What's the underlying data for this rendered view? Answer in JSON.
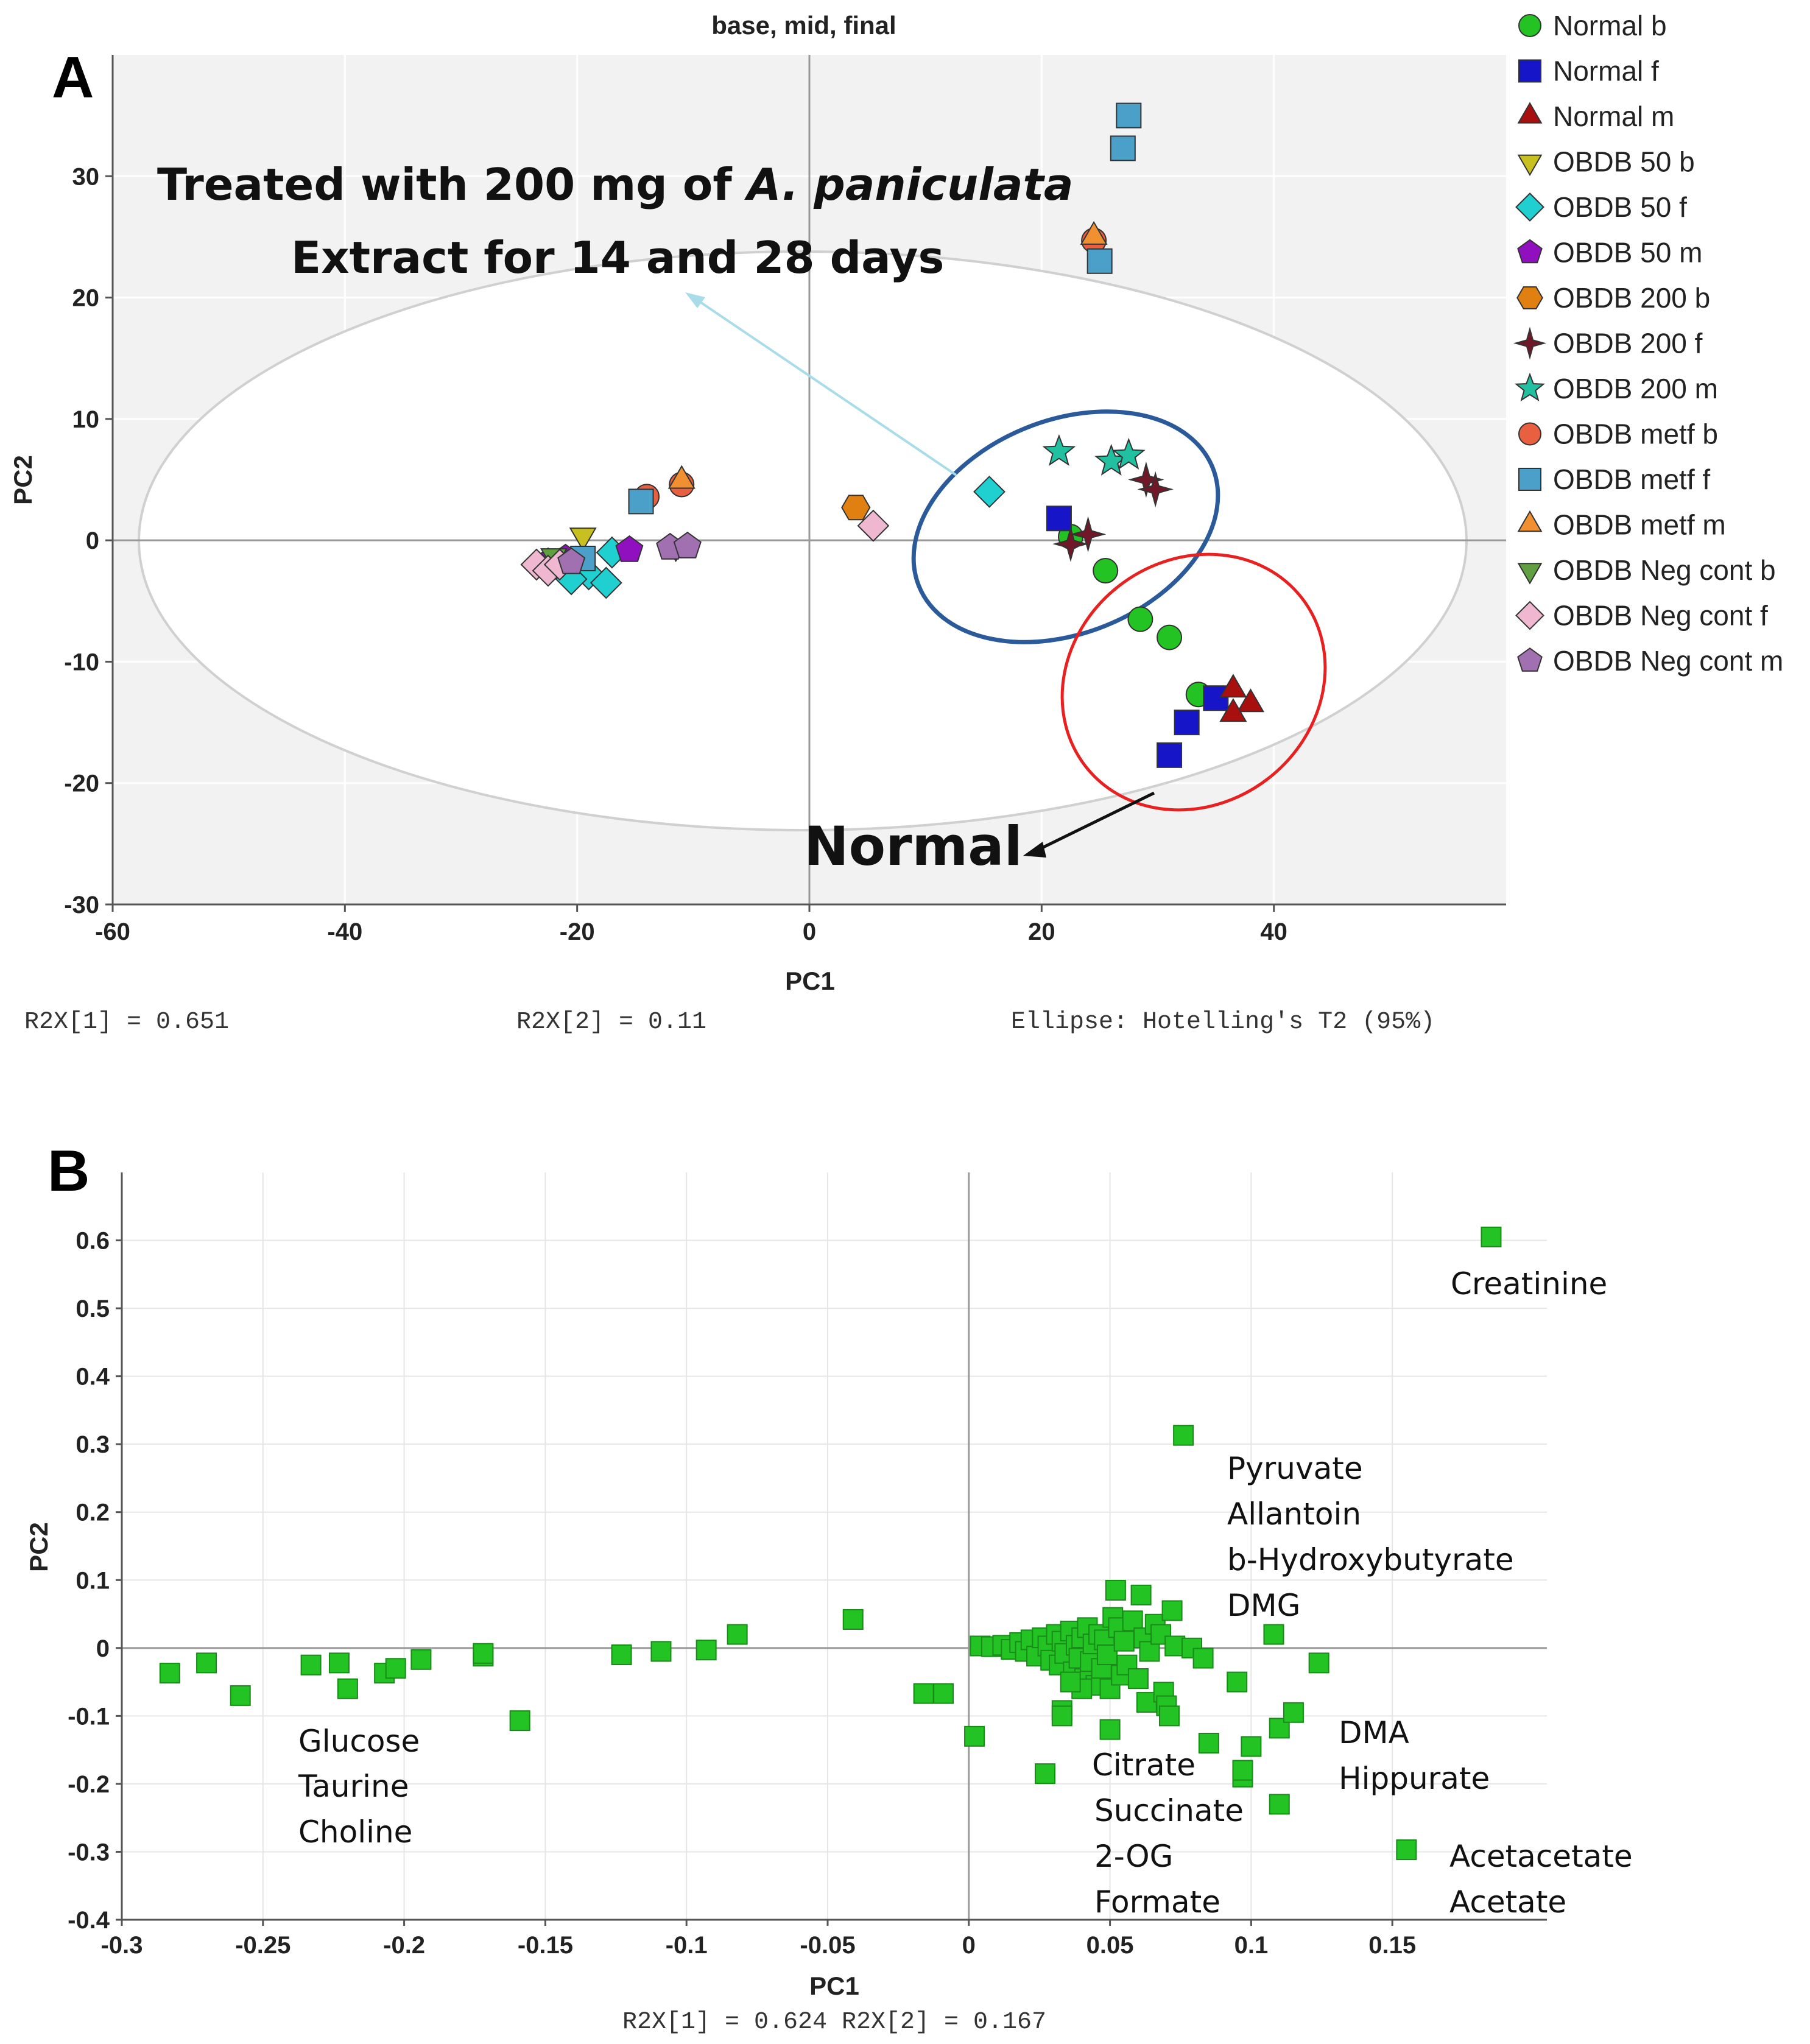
{
  "chart_data": [
    {
      "panel": "A",
      "type": "scatter",
      "title": "base, mid, final",
      "xlabel": "PC1",
      "ylabel": "PC2",
      "xlim": [
        -60,
        60
      ],
      "ylim": [
        -30,
        40
      ],
      "xticks": [
        -60,
        -40,
        -20,
        0,
        20,
        40
      ],
      "yticks": [
        -30,
        -20,
        -10,
        0,
        10,
        20,
        30
      ],
      "grid": true,
      "legend_position": "right",
      "footer": {
        "r2x1": "R2X[1] = 0.651",
        "r2x2": "R2X[2] = 0.11",
        "ellipse": "Ellipse: Hotelling's T2 (95%)"
      },
      "annotations": {
        "treated_line1_pre": "Treated with 200 mg of ",
        "treated_line1_italic": "A. paniculata",
        "treated_line2": "Extract  for 14 and 28 days",
        "normal": "Normal"
      },
      "series": [
        {
          "name": "Normal b",
          "marker": "circle",
          "color": "#22c322",
          "points": [
            [
              22.5,
              0.3
            ],
            [
              25.5,
              -2.5
            ],
            [
              28.5,
              -6.5
            ],
            [
              31,
              -8
            ],
            [
              33.5,
              -12.7
            ]
          ]
        },
        {
          "name": "Normal f",
          "marker": "square",
          "color": "#1616c8",
          "points": [
            [
              21.5,
              1.8
            ],
            [
              35,
              -13
            ],
            [
              32.5,
              -15
            ],
            [
              31,
              -17.7
            ]
          ]
        },
        {
          "name": "Normal m",
          "marker": "triangle",
          "color": "#a81010",
          "points": [
            [
              36.5,
              -12.3
            ],
            [
              38,
              -13.5
            ],
            [
              36.5,
              -14.3
            ]
          ]
        },
        {
          "name": "OBDB 50 b",
          "marker": "triangle-down",
          "color": "#c8c020",
          "points": [
            [
              -19.5,
              0.4
            ]
          ]
        },
        {
          "name": "OBDB 50 f",
          "marker": "diamond",
          "color": "#20d0d0",
          "points": [
            [
              15.5,
              4
            ],
            [
              -17,
              -1
            ],
            [
              -19,
              -2.8
            ],
            [
              -20.5,
              -3.2
            ],
            [
              -17.5,
              -3.5
            ]
          ]
        },
        {
          "name": "OBDB 50 m",
          "marker": "pentagon",
          "color": "#9010c0",
          "points": [
            [
              -15.5,
              -0.8
            ],
            [
              -21,
              -1.5
            ],
            [
              -22.5,
              -1.8
            ]
          ]
        },
        {
          "name": "OBDB 200 b",
          "marker": "hexagon",
          "color": "#e08010",
          "points": [
            [
              4,
              2.7
            ]
          ]
        },
        {
          "name": "OBDB 200 f",
          "marker": "star4",
          "color": "#701828",
          "points": [
            [
              29,
              5
            ],
            [
              29.8,
              4.2
            ],
            [
              24,
              0.5
            ],
            [
              22.5,
              -0.3
            ]
          ]
        },
        {
          "name": "OBDB 200 m",
          "marker": "star",
          "color": "#20c0a0",
          "points": [
            [
              21.5,
              7.3
            ],
            [
              26,
              6.5
            ],
            [
              27.5,
              7
            ]
          ]
        },
        {
          "name": "OBDB metf b",
          "marker": "circle",
          "color": "#e86040",
          "points": [
            [
              24.5,
              24.7
            ],
            [
              -11,
              4.6
            ],
            [
              -14,
              3.6
            ]
          ]
        },
        {
          "name": "OBDB metf f",
          "marker": "square",
          "color": "#4aa0c8",
          "points": [
            [
              27.5,
              35
            ],
            [
              27,
              32.3
            ],
            [
              25,
              23
            ],
            [
              -14.5,
              3.2
            ],
            [
              -19.5,
              -1.5
            ]
          ]
        },
        {
          "name": "OBDB metf m",
          "marker": "triangle",
          "color": "#f09030",
          "points": [
            [
              24.5,
              25
            ],
            [
              -11,
              4.9
            ]
          ]
        },
        {
          "name": "OBDB Neg cont b",
          "marker": "triangle-down",
          "color": "#60a040",
          "points": [
            [
              -22,
              -1.3
            ],
            [
              -11.5,
              -0.5
            ]
          ]
        },
        {
          "name": "OBDB Neg cont f",
          "marker": "diamond",
          "color": "#f0b8d0",
          "points": [
            [
              5.5,
              1.2
            ],
            [
              -23.5,
              -2
            ],
            [
              -22.5,
              -2.5
            ],
            [
              -21.5,
              -2
            ]
          ]
        },
        {
          "name": "OBDB Neg cont m",
          "marker": "pentagon",
          "color": "#a070b0",
          "points": [
            [
              -12,
              -0.6
            ],
            [
              -10.5,
              -0.5
            ],
            [
              -20.5,
              -1.8
            ]
          ]
        }
      ]
    },
    {
      "panel": "B",
      "type": "scatter",
      "xlabel": "PC1",
      "ylabel": "PC2",
      "xlim": [
        -0.3,
        0.2
      ],
      "ylim": [
        -0.4,
        0.7
      ],
      "xticks": [
        -0.3,
        -0.25,
        -0.2,
        -0.15,
        -0.1,
        -0.05,
        0,
        0.05,
        0.1,
        0.15
      ],
      "yticks": [
        -0.4,
        -0.3,
        -0.2,
        -0.1,
        0,
        0.1,
        0.2,
        0.3,
        0.4,
        0.5,
        0.6
      ],
      "xtick_labels": [
        "-0.3",
        "-0.25",
        "-0.2",
        "-0.15",
        "-0.1",
        "-0.05",
        "0",
        "0.05",
        "0.1",
        "0.15"
      ],
      "ytick_labels": [
        "-0.4",
        "-0.3",
        "-0.2",
        "-0.1",
        "0",
        "0.1",
        "0.2",
        "0.3",
        "0.4",
        "0.5",
        "0.6"
      ],
      "grid": true,
      "footer": "R2X[1] = 0.624  R2X[2] = 0.167",
      "marker_color": "#22c322",
      "labels": {
        "creatinine": "Creatinine",
        "group1": [
          "Pyruvate",
          "Allantoin",
          "b-Hydroxybutyrate",
          "DMG"
        ],
        "group2": [
          "Glucose",
          "Taurine",
          "Choline"
        ],
        "group3": [
          "Citrate",
          "Succinate",
          "2-OG",
          "Formate"
        ],
        "group4": [
          "DMA",
          "Hippurate"
        ],
        "group5": [
          "Acetacetate",
          "Acetate"
        ]
      },
      "points": [
        [
          0.185,
          0.605
        ],
        [
          0.076,
          0.313
        ],
        [
          -0.283,
          -0.037
        ],
        [
          -0.27,
          -0.022
        ],
        [
          -0.258,
          -0.07
        ],
        [
          -0.233,
          -0.025
        ],
        [
          -0.223,
          -0.022
        ],
        [
          -0.22,
          -0.06
        ],
        [
          -0.207,
          -0.037
        ],
        [
          -0.203,
          -0.03
        ],
        [
          -0.194,
          -0.017
        ],
        [
          -0.172,
          -0.012
        ],
        [
          -0.172,
          -0.008
        ],
        [
          -0.159,
          -0.107
        ],
        [
          -0.123,
          -0.01
        ],
        [
          -0.109,
          -0.005
        ],
        [
          -0.093,
          -0.003
        ],
        [
          -0.082,
          0.02
        ],
        [
          -0.041,
          0.042
        ],
        [
          -0.016,
          -0.067
        ],
        [
          -0.009,
          -0.067
        ],
        [
          0.002,
          -0.13
        ],
        [
          0.027,
          -0.185
        ],
        [
          0.004,
          0.003
        ],
        [
          0.008,
          0.002
        ],
        [
          0.012,
          0.004
        ],
        [
          0.015,
          -0.002
        ],
        [
          0.018,
          0.008
        ],
        [
          0.02,
          -0.005
        ],
        [
          0.022,
          0.012
        ],
        [
          0.024,
          -0.012
        ],
        [
          0.026,
          0.015
        ],
        [
          0.028,
          0.003
        ],
        [
          0.029,
          -0.018
        ],
        [
          0.031,
          0.02
        ],
        [
          0.032,
          -0.025
        ],
        [
          0.033,
          0.01
        ],
        [
          0.034,
          -0.008
        ],
        [
          0.036,
          0.025
        ],
        [
          0.037,
          -0.035
        ],
        [
          0.038,
          0.004
        ],
        [
          0.039,
          -0.015
        ],
        [
          0.04,
          0.015
        ],
        [
          0.041,
          -0.045
        ],
        [
          0.042,
          0.03
        ],
        [
          0.043,
          -0.02
        ],
        [
          0.044,
          0.006
        ],
        [
          0.045,
          -0.055
        ],
        [
          0.046,
          0.02
        ],
        [
          0.047,
          -0.03
        ],
        [
          0.048,
          0.012
        ],
        [
          0.049,
          -0.01
        ],
        [
          0.05,
          -0.06
        ],
        [
          0.051,
          0.045
        ],
        [
          0.052,
          0.085
        ],
        [
          0.053,
          0.03
        ],
        [
          0.054,
          -0.04
        ],
        [
          0.055,
          0.01
        ],
        [
          0.056,
          -0.025
        ],
        [
          0.058,
          0.04
        ],
        [
          0.06,
          -0.045
        ],
        [
          0.061,
          0.078
        ],
        [
          0.062,
          0.015
        ],
        [
          0.063,
          -0.08
        ],
        [
          0.064,
          -0.005
        ],
        [
          0.066,
          0.035
        ],
        [
          0.068,
          0.02
        ],
        [
          0.069,
          -0.065
        ],
        [
          0.07,
          -0.085
        ],
        [
          0.071,
          -0.1
        ],
        [
          0.072,
          0.055
        ],
        [
          0.073,
          0.003
        ],
        [
          0.05,
          -0.12
        ],
        [
          0.033,
          -0.092
        ],
        [
          0.033,
          -0.1
        ],
        [
          0.04,
          -0.06
        ],
        [
          0.036,
          -0.05
        ],
        [
          0.079,
          0.0
        ],
        [
          0.083,
          -0.015
        ],
        [
          0.085,
          -0.14
        ],
        [
          0.095,
          -0.05
        ],
        [
          0.097,
          -0.19
        ],
        [
          0.097,
          -0.18
        ],
        [
          0.1,
          -0.145
        ],
        [
          0.108,
          0.02
        ],
        [
          0.11,
          -0.118
        ],
        [
          0.11,
          -0.23
        ],
        [
          0.115,
          -0.095
        ],
        [
          0.124,
          -0.022
        ],
        [
          0.155,
          -0.297
        ]
      ]
    }
  ]
}
